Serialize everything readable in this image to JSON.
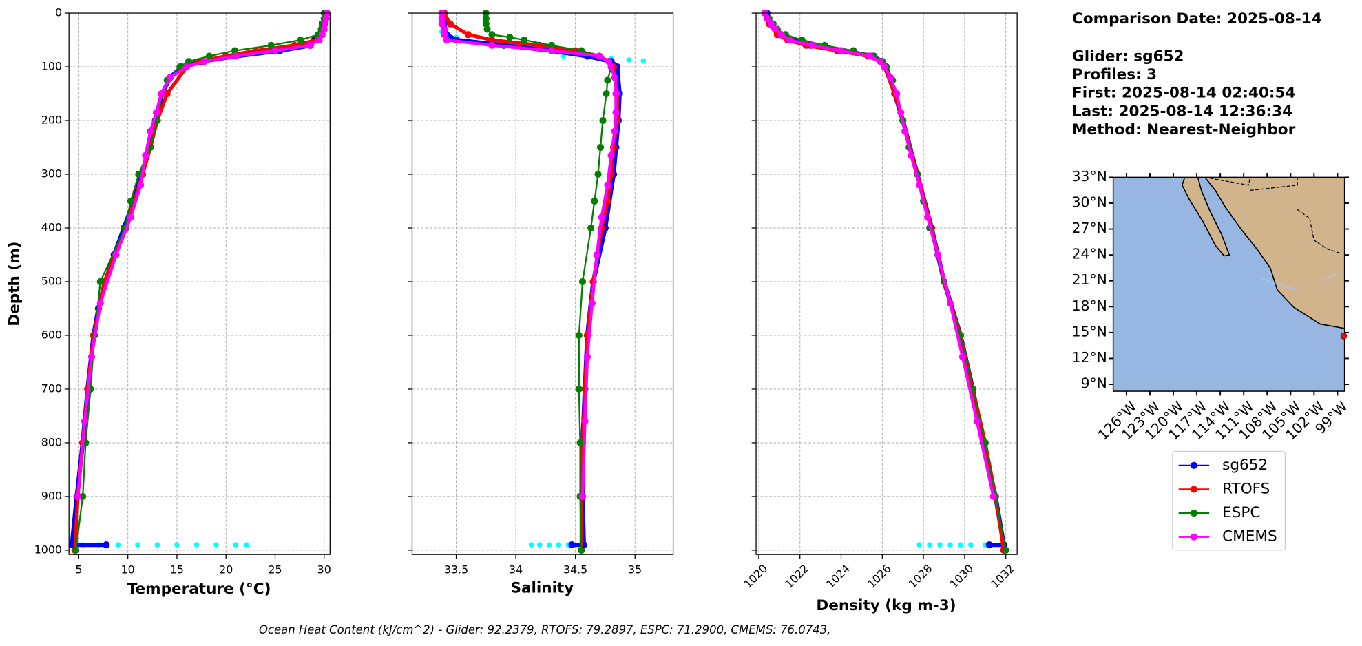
{
  "chart_data": [
    {
      "type": "profile",
      "xlabel": "Temperature (°C)",
      "ylabel": "Depth (m)",
      "ytick_labels": true,
      "y_inverted": true,
      "grid": true,
      "xlim": [
        4.0,
        30.6
      ],
      "xticks": [
        5,
        10,
        15,
        20,
        25,
        30
      ],
      "ylim": [
        0,
        1008
      ],
      "yticks": [
        0,
        100,
        200,
        300,
        400,
        500,
        600,
        700,
        800,
        900,
        1000
      ],
      "series": [
        {
          "color": "#00ffff",
          "style": "points",
          "x": [
            5.4,
            7,
            9,
            11,
            13,
            15,
            17,
            19,
            21,
            22.1
          ],
          "y": [
            990,
            990,
            990,
            990,
            990,
            990,
            990,
            990,
            990,
            990
          ]
        },
        {
          "name": "sg652",
          "color": "#0000ff",
          "width": 5,
          "y": [
            0,
            20,
            40,
            50,
            60,
            70,
            80,
            90,
            100,
            120,
            150,
            200,
            250,
            300,
            350,
            400,
            450,
            500,
            550,
            600,
            700,
            800,
            900,
            990,
            990
          ],
          "x": [
            30.3,
            30,
            29.6,
            29,
            28.6,
            25.5,
            21,
            17.5,
            15.5,
            14.3,
            13.5,
            12.8,
            12.2,
            11.4,
            10.6,
            9.6,
            8.6,
            7.7,
            7,
            6.5,
            5.9,
            5.4,
            4.8,
            4.3,
            7.8
          ]
        },
        {
          "name": "RTOFS",
          "color": "#ff0000",
          "width": 4,
          "y": [
            0,
            50,
            60,
            70,
            80,
            90,
            100,
            150,
            200,
            250,
            300,
            400,
            500,
            600,
            700,
            800,
            900,
            1000
          ],
          "x": [
            30.3,
            29.3,
            27,
            23,
            20,
            17.3,
            16,
            14,
            13,
            12.3,
            11.5,
            9.8,
            7.6,
            6.5,
            5.9,
            5.4,
            4.9,
            4.6
          ]
        },
        {
          "name": "ESPC",
          "color": "#008000",
          "width": 1.8,
          "y": [
            0,
            10,
            20,
            30,
            40,
            50,
            60,
            70,
            80,
            90,
            100,
            125,
            150,
            200,
            250,
            300,
            350,
            400,
            500,
            600,
            700,
            800,
            900,
            1000
          ],
          "x": [
            30,
            30,
            29.8,
            29.7,
            29.4,
            27.6,
            24.6,
            20.9,
            18.3,
            16.2,
            15.3,
            14,
            13.5,
            13,
            12.3,
            11.1,
            10.3,
            9.7,
            7.2,
            6.6,
            6.2,
            5.7,
            5.4,
            4.7
          ]
        },
        {
          "name": "CMEMS",
          "color": "#ff00ff",
          "width": 3.5,
          "y": [
            0,
            10,
            20,
            30,
            40,
            50,
            60,
            70,
            80,
            90,
            100,
            120,
            150,
            185,
            220,
            265,
            320,
            380,
            450,
            540,
            640,
            760,
            900
          ],
          "x": [
            30.3,
            30.2,
            30.1,
            30,
            29.8,
            29.5,
            28.5,
            25,
            21,
            17.8,
            16,
            14.3,
            13.4,
            12.9,
            12.3,
            11.8,
            11.3,
            10.3,
            8.8,
            7.2,
            6.3,
            5.6,
            4.9
          ]
        }
      ]
    },
    {
      "type": "profile",
      "xlabel": "Salinity",
      "ytick_labels": false,
      "y_inverted": true,
      "grid": true,
      "xlim": [
        33.13,
        35.32
      ],
      "xticks": [
        33.5,
        34.0,
        34.5,
        35.0
      ],
      "ylim": [
        0,
        1008
      ],
      "yticks": [
        0,
        100,
        200,
        300,
        400,
        500,
        600,
        700,
        800,
        900,
        1000
      ],
      "series": [
        {
          "color": "#00ffff",
          "style": "points",
          "x": [
            34.13,
            34.2,
            34.28,
            34.36,
            34.44,
            33.38,
            33.42,
            33.5,
            34.4,
            34.6,
            34.8,
            34.95,
            35.07
          ],
          "y": [
            990,
            990,
            990,
            990,
            990,
            35,
            40,
            45,
            80,
            82,
            85,
            87,
            89
          ]
        },
        {
          "name": "sg652",
          "color": "#0000ff",
          "width": 5,
          "y": [
            0,
            20,
            40,
            50,
            60,
            70,
            80,
            90,
            100,
            150,
            200,
            250,
            300,
            400,
            500,
            600,
            700,
            800,
            900,
            990,
            990
          ],
          "x": [
            33.4,
            33.4,
            33.42,
            33.5,
            33.9,
            34.3,
            34.6,
            34.8,
            34.85,
            34.87,
            34.86,
            34.84,
            34.82,
            34.75,
            34.65,
            34.6,
            34.58,
            34.56,
            34.56,
            34.57,
            34.47
          ]
        },
        {
          "name": "RTOFS",
          "color": "#ff0000",
          "width": 4,
          "y": [
            0,
            20,
            40,
            50,
            60,
            70,
            80,
            90,
            100,
            150,
            200,
            250,
            300,
            350,
            400,
            500,
            600,
            700,
            800,
            900,
            1000
          ],
          "x": [
            33.4,
            33.45,
            33.6,
            33.8,
            34.2,
            34.5,
            34.7,
            34.78,
            34.82,
            34.85,
            34.85,
            34.82,
            34.8,
            34.77,
            34.72,
            34.65,
            34.6,
            34.58,
            34.56,
            34.55,
            34.55
          ]
        },
        {
          "name": "ESPC",
          "color": "#008000",
          "width": 1.8,
          "y": [
            0,
            10,
            20,
            30,
            40,
            45,
            50,
            60,
            70,
            80,
            90,
            100,
            125,
            150,
            200,
            250,
            300,
            350,
            400,
            500,
            600,
            700,
            800,
            900,
            1000
          ],
          "x": [
            33.75,
            33.75,
            33.75,
            33.76,
            33.8,
            33.95,
            34.07,
            34.3,
            34.55,
            34.7,
            34.78,
            34.8,
            34.77,
            34.76,
            34.73,
            34.71,
            34.69,
            34.66,
            34.63,
            34.56,
            34.53,
            34.53,
            34.54,
            34.54,
            34.55
          ]
        },
        {
          "name": "CMEMS",
          "color": "#ff00ff",
          "width": 3.5,
          "y": [
            0,
            10,
            20,
            30,
            40,
            50,
            60,
            70,
            80,
            90,
            100,
            120,
            150,
            185,
            220,
            265,
            320,
            380,
            450,
            540,
            640,
            760,
            900
          ],
          "x": [
            33.38,
            33.38,
            33.38,
            33.4,
            33.4,
            33.42,
            33.8,
            34.3,
            34.7,
            34.78,
            34.8,
            34.83,
            34.84,
            34.84,
            34.83,
            34.8,
            34.77,
            34.72,
            34.68,
            34.64,
            34.6,
            34.58,
            34.56
          ]
        }
      ]
    },
    {
      "type": "profile",
      "xlabel": "Density (kg m-3)",
      "ytick_labels": false,
      "y_inverted": true,
      "grid": true,
      "xtick_rotation": 45,
      "xlim": [
        1019.87,
        1032.55
      ],
      "xticks": [
        1020,
        1022,
        1024,
        1026,
        1028,
        1030,
        1032
      ],
      "ylim": [
        0,
        1008
      ],
      "yticks": [
        0,
        100,
        200,
        300,
        400,
        500,
        600,
        700,
        800,
        900,
        1000
      ],
      "series": [
        {
          "color": "#00ffff",
          "style": "points",
          "x": [
            1027.8,
            1028.3,
            1028.8,
            1029.3,
            1029.8,
            1030.3,
            1031
          ],
          "y": [
            990,
            990,
            990,
            990,
            990,
            990,
            990
          ]
        },
        {
          "name": "sg652",
          "color": "#0000ff",
          "width": 5,
          "y": [
            0,
            20,
            40,
            50,
            60,
            70,
            80,
            90,
            100,
            150,
            200,
            300,
            400,
            500,
            600,
            700,
            800,
            900,
            990,
            990
          ],
          "x": [
            1020.4,
            1020.6,
            1021,
            1021.6,
            1022.5,
            1024,
            1025.5,
            1026,
            1026.2,
            1026.6,
            1027,
            1027.7,
            1028.4,
            1029,
            1029.8,
            1030.4,
            1030.9,
            1031.5,
            1031.9,
            1031.2
          ]
        },
        {
          "name": "RTOFS",
          "color": "#ff0000",
          "width": 4,
          "y": [
            0,
            20,
            40,
            50,
            60,
            70,
            80,
            90,
            100,
            150,
            200,
            300,
            400,
            500,
            600,
            700,
            800,
            900,
            1000
          ],
          "x": [
            1020.3,
            1020.5,
            1020.9,
            1021.4,
            1022.3,
            1023.8,
            1025.3,
            1025.9,
            1026.1,
            1026.6,
            1027,
            1027.7,
            1028.4,
            1029,
            1029.8,
            1030.4,
            1031,
            1031.5,
            1031.9
          ]
        },
        {
          "name": "ESPC",
          "color": "#008000",
          "width": 1.8,
          "y": [
            0,
            10,
            20,
            30,
            40,
            50,
            60,
            70,
            80,
            90,
            100,
            125,
            150,
            200,
            250,
            300,
            350,
            400,
            500,
            600,
            700,
            800,
            900,
            1000
          ],
          "x": [
            1020.3,
            1020.5,
            1020.7,
            1020.9,
            1021.3,
            1022.1,
            1023.2,
            1024.6,
            1025.6,
            1026,
            1026.2,
            1026.5,
            1026.7,
            1027,
            1027.3,
            1027.7,
            1028,
            1028.3,
            1029,
            1029.8,
            1030.4,
            1031,
            1031.5,
            1032
          ]
        },
        {
          "name": "CMEMS",
          "color": "#ff00ff",
          "width": 3.5,
          "y": [
            0,
            10,
            20,
            30,
            40,
            50,
            60,
            70,
            80,
            90,
            100,
            120,
            150,
            185,
            220,
            265,
            320,
            380,
            450,
            540,
            640,
            760,
            900
          ],
          "x": [
            1020.3,
            1020.4,
            1020.6,
            1020.8,
            1021.1,
            1021.5,
            1022.6,
            1024,
            1025.4,
            1025.9,
            1026.1,
            1026.4,
            1026.7,
            1026.9,
            1027.1,
            1027.4,
            1027.8,
            1028.2,
            1028.7,
            1029.3,
            1029.9,
            1030.6,
            1031.4
          ]
        }
      ]
    },
    {
      "type": "map",
      "xlim": [
        -127.7,
        -98.1
      ],
      "ylim": [
        8.2,
        33
      ],
      "xticks": [
        {
          "value": -126,
          "label": "126°W"
        },
        {
          "value": -123,
          "label": "123°W"
        },
        {
          "value": -120,
          "label": "120°W"
        },
        {
          "value": -117,
          "label": "117°W"
        },
        {
          "value": -114,
          "label": "114°W"
        },
        {
          "value": -111,
          "label": "111°W"
        },
        {
          "value": -108,
          "label": "108°W"
        },
        {
          "value": -105,
          "label": "105°W"
        },
        {
          "value": -102,
          "label": "102°W"
        },
        {
          "value": -99,
          "label": "99°W"
        }
      ],
      "yticks": [
        {
          "value": 9,
          "label": "9°N"
        },
        {
          "value": 12,
          "label": "12°N"
        },
        {
          "value": 15,
          "label": "15°N"
        },
        {
          "value": 18,
          "label": "18°N"
        },
        {
          "value": 21,
          "label": "21°N"
        },
        {
          "value": 24,
          "label": "24°N"
        },
        {
          "value": 27,
          "label": "27°N"
        },
        {
          "value": 30,
          "label": "30°N"
        },
        {
          "value": 33,
          "label": "33°N"
        }
      ],
      "points": {
        "color": "#ff0000",
        "x": [
          -98.2
        ],
        "y": [
          14.6
        ]
      }
    }
  ],
  "info": {
    "lines": [
      "Comparison Date: 2025-08-14",
      "Glider: sg652",
      "Profiles: 3",
      "First: 2025-08-14 02:40:54",
      "Last: 2025-08-14 12:36:34",
      "Method: Nearest-Neighbor"
    ]
  },
  "footer": "Ocean Heat Content (kJ/cm^2) - Glider: 92.2379,  RTOFS: 79.2897,  ESPC: 71.2900,  CMEMS: 76.0743,"
}
